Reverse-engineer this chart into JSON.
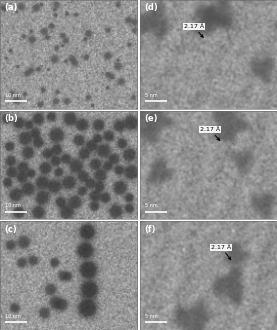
{
  "figsize": [
    2.77,
    3.3
  ],
  "dpi": 100,
  "panel_labels": [
    "(a)",
    "(b)",
    "(c)",
    "(d)",
    "(e)",
    "(f)"
  ],
  "annotation_text": "2.17 Å",
  "bg_gray": 0.6,
  "noise_level": 0.1,
  "label_fontsize": 6,
  "annotation_fontsize": 4.5,
  "scale_fontsize": 3.5
}
